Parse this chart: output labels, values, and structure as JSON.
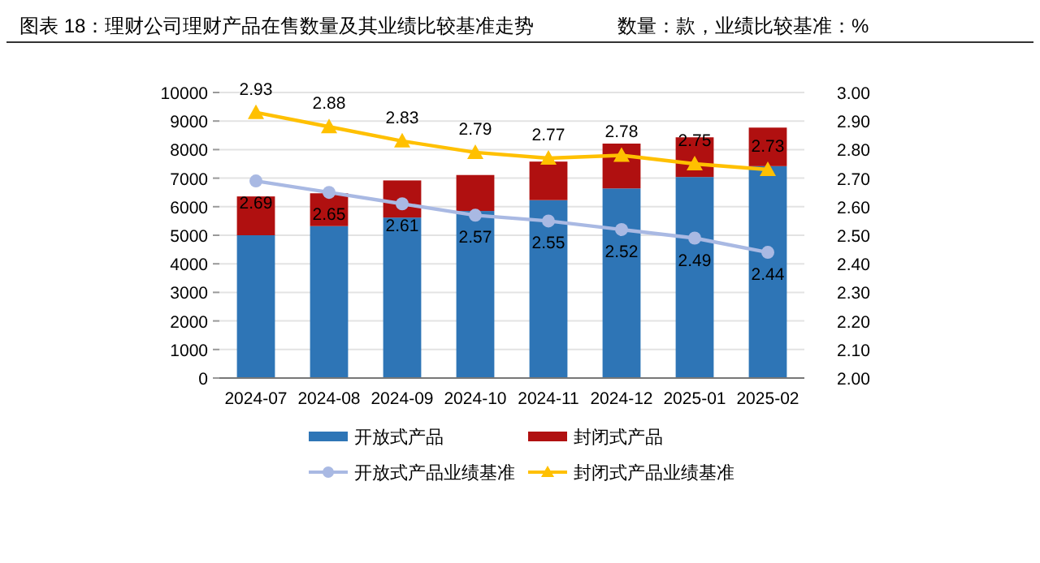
{
  "chart_data": {
    "type": "bar",
    "title": "图表 18：理财公司理财产品在售数量及其业绩比较基准走势",
    "subtitle": "数量：款，业绩比较基准：%",
    "categories": [
      "2024-07",
      "2024-08",
      "2024-09",
      "2024-10",
      "2024-11",
      "2024-12",
      "2025-01",
      "2025-02"
    ],
    "stacked": true,
    "series": [
      {
        "name": "开放式产品",
        "color": "#2e75b6",
        "values": [
          5000,
          5320,
          5620,
          5850,
          6230,
          6640,
          7040,
          7420
        ]
      },
      {
        "name": "封闭式产品",
        "color": "#b01010",
        "values": [
          1360,
          1150,
          1300,
          1260,
          1350,
          1570,
          1390,
          1350
        ]
      },
      {
        "name": "开放式产品业绩基准",
        "type": "line",
        "axis": "y2",
        "marker": "circle",
        "color": "#a9b9e3",
        "values": [
          2.69,
          2.65,
          2.61,
          2.57,
          2.55,
          2.52,
          2.49,
          2.44
        ],
        "value_labels": [
          "2.69",
          "2.65",
          "2.61",
          "2.57",
          "2.55",
          "2.52",
          "2.49",
          "2.44"
        ]
      },
      {
        "name": "封闭式产品业绩基准",
        "type": "line",
        "axis": "y2",
        "marker": "triangle",
        "color": "#ffc000",
        "values": [
          2.93,
          2.88,
          2.83,
          2.79,
          2.77,
          2.78,
          2.75,
          2.73
        ],
        "value_labels": [
          "2.93",
          "2.88",
          "2.83",
          "2.79",
          "2.77",
          "2.78",
          "2.75",
          "2.73"
        ]
      }
    ],
    "ylim": [
      0,
      10000
    ],
    "yticks": [
      0,
      1000,
      2000,
      3000,
      4000,
      5000,
      6000,
      7000,
      8000,
      9000,
      10000
    ],
    "y2lim": [
      2.0,
      3.0
    ],
    "y2ticks": [
      {
        "value": 2.0,
        "label": "2.00"
      },
      {
        "value": 2.1,
        "label": "2.10"
      },
      {
        "value": 2.2,
        "label": "2.20"
      },
      {
        "value": 2.3,
        "label": "2.30"
      },
      {
        "value": 2.4,
        "label": "2.40"
      },
      {
        "value": 2.5,
        "label": "2.50"
      },
      {
        "value": 2.6,
        "label": "2.60"
      },
      {
        "value": 2.7,
        "label": "2.70"
      },
      {
        "value": 2.8,
        "label": "2.80"
      },
      {
        "value": 2.9,
        "label": "2.90"
      },
      {
        "value": 3.0,
        "label": "3.00"
      }
    ],
    "grid": "y",
    "legend": "bottom",
    "line_style": "solid"
  }
}
